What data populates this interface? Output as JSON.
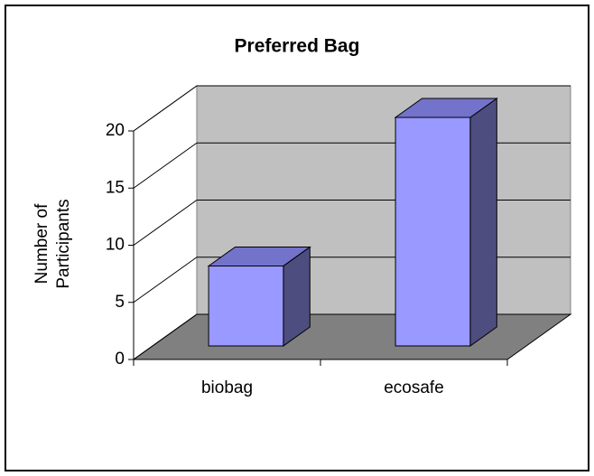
{
  "chart_data": {
    "type": "bar",
    "title": "Preferred Bag",
    "ylabel": [
      "Number of",
      "Participants"
    ],
    "categories": [
      "biobag",
      "ecosafe"
    ],
    "values": [
      7,
      20
    ],
    "color": "#9999ff",
    "ylim": [
      0,
      20
    ],
    "yticks": [
      0,
      5,
      10,
      15,
      20
    ],
    "grid": true
  }
}
